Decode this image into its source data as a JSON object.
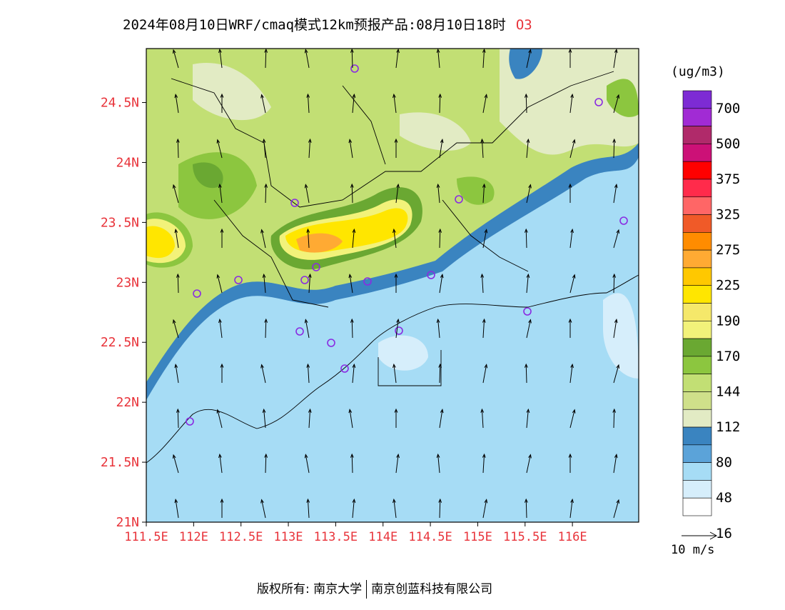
{
  "header": {
    "title": "2024年08月10日WRF/cmaq模式12km预报产品:08月10日18时",
    "pollutant": "O3"
  },
  "axes": {
    "lat_labels": [
      "24.5N",
      "24N",
      "23.5N",
      "23N",
      "22.5N",
      "22N",
      "21.5N",
      "21N"
    ],
    "lon_labels": [
      "111.5E",
      "112E",
      "112.5E",
      "113E",
      "113.5E",
      "114E",
      "114.5E",
      "115E",
      "115.5E",
      "116E"
    ],
    "label_color": "#e8333a"
  },
  "legend": {
    "unit": "(ug/m3)",
    "labels": [
      "700",
      "500",
      "375",
      "325",
      "275",
      "225",
      "190",
      "170",
      "144",
      "112",
      "80",
      "48",
      "16"
    ],
    "colors": [
      "#7d2bd4",
      "#a12bd4",
      "#b02a6a",
      "#cc1177",
      "#ff0000",
      "#ff2b4b",
      "#ff6666",
      "#f05a28",
      "#ff8c00",
      "#ffaa33",
      "#ffc800",
      "#ffe600",
      "#f5e86a",
      "#f2f27a",
      "#6aa832",
      "#8cc63f",
      "#c2df74",
      "#cfe08a",
      "#e2ebc4",
      "#3a84c0",
      "#5ba3d9",
      "#a6dcf5",
      "#d6eefb",
      "#ffffff"
    ]
  },
  "wind_reference": {
    "label": "10 m/s"
  },
  "stations_label": "",
  "footer": {
    "left": "版权所有: 南京大学",
    "right": "南京创蓝科技有限公司"
  },
  "chart_data": {
    "type": "heatmap",
    "title": "2024年08月10日WRF/cmaq模式12km预报产品:08月10日18时 O3",
    "xlabel": "",
    "ylabel": "",
    "xlim": [
      111.5,
      116.7
    ],
    "ylim": [
      21.0,
      24.95
    ],
    "colorbar_unit": "(ug/m3)",
    "colorbar_levels": [
      16,
      48,
      80,
      112,
      144,
      170,
      190,
      225,
      275,
      325,
      375,
      500,
      700
    ]
  }
}
